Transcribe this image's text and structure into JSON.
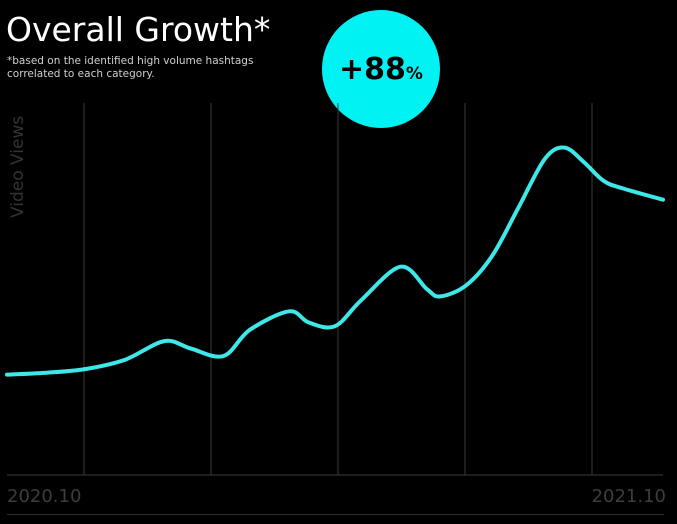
{
  "header": {
    "title": "Overall Growth*",
    "footnote_line1": "*based on the identified high volume hashtags",
    "footnote_line2": "correlated to each category."
  },
  "badge": {
    "value": "+88",
    "unit": "%",
    "color": "#00f2f2"
  },
  "chart_data": {
    "type": "line",
    "title": "Overall Growth*",
    "ylabel": "Video Views",
    "xlabel": "",
    "x_tick_labels": [
      "2020.10",
      "2021.10"
    ],
    "grid": "vertical",
    "ylim": [
      0,
      100
    ],
    "series": [
      {
        "color": "#3ee8e8",
        "x": [
          0,
          0.06,
          0.12,
          0.18,
          0.24,
          0.28,
          0.33,
          0.37,
          0.43,
          0.46,
          0.5,
          0.54,
          0.6,
          0.64,
          0.66,
          0.7,
          0.74,
          0.78,
          0.82,
          0.85,
          0.88,
          0.91,
          0.94,
          1.0
        ],
        "values": [
          27,
          27.5,
          28.5,
          31,
          36,
          34,
          32,
          39,
          44,
          41,
          40,
          47,
          56,
          50,
          48,
          51,
          59,
          72,
          85,
          88,
          84,
          79,
          77,
          74
        ]
      }
    ]
  }
}
